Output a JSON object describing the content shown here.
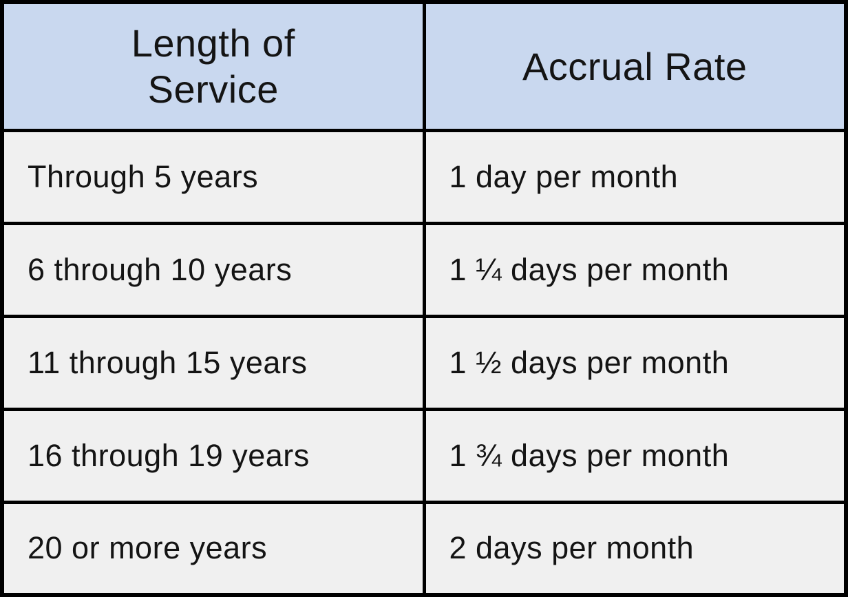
{
  "table": {
    "headers": [
      {
        "label": "Length of Service",
        "lines": [
          "Length of",
          "Service"
        ]
      },
      {
        "label": "Accrual Rate",
        "lines": [
          "Accrual Rate",
          ""
        ]
      }
    ],
    "rows": [
      {
        "length_of_service": "Through 5 years",
        "accrual_rate": "1 day per month"
      },
      {
        "length_of_service": "6 through 10 years",
        "accrual_rate": "1 ¼ days per month"
      },
      {
        "length_of_service": "11 through 15 years",
        "accrual_rate": "1 ½ days per month"
      },
      {
        "length_of_service": "16 through 19 years",
        "accrual_rate": "1 ¾ days per month"
      },
      {
        "length_of_service": "20 or more years",
        "accrual_rate": "2 days per month"
      }
    ],
    "colors": {
      "header_bg": "#c9d8ef",
      "row_bg": "#f0f0f0",
      "border": "#000000",
      "text": "#141414"
    }
  },
  "chart_data": {
    "type": "table",
    "title": "",
    "columns": [
      "Length of Service",
      "Accrual Rate"
    ],
    "rows": [
      [
        "Through 5 years",
        "1 day per month"
      ],
      [
        "6 through 10 years",
        "1 ¼ days per month"
      ],
      [
        "11 through 15 years",
        "1 ½ days per month"
      ],
      [
        "16 through 19 years",
        "1 ¾ days per month"
      ],
      [
        "20 or more years",
        "2 days per month"
      ]
    ],
    "accrual_days_per_month": [
      1,
      1.25,
      1.5,
      1.75,
      2
    ],
    "layout": {
      "header_fill": "#c9d8ef",
      "body_fill": "#f0f0f0",
      "grid": "on"
    }
  }
}
